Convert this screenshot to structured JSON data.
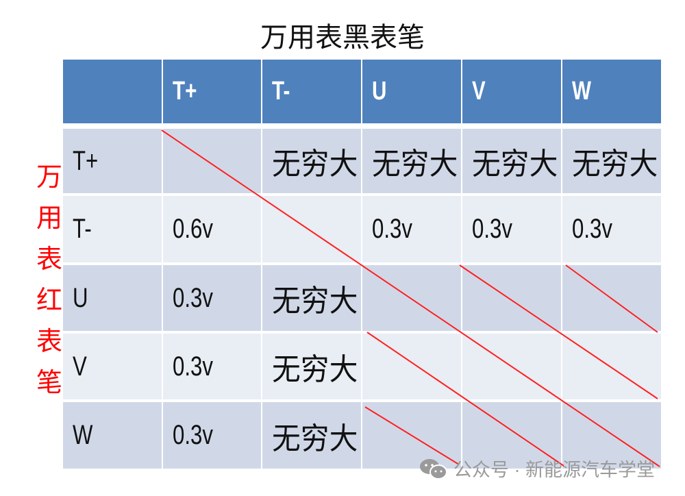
{
  "title": "万用表黑表笔",
  "side_label": "万用表红表笔",
  "columns": [
    "",
    "T+",
    "T-",
    "U",
    "V",
    "W"
  ],
  "rows": [
    {
      "label": "T+",
      "cells": [
        "",
        "无穷大",
        "无穷大",
        "无穷大",
        "无穷大"
      ]
    },
    {
      "label": "T-",
      "cells": [
        "0.6v",
        "",
        "0.3v",
        "0.3v",
        "0.3v"
      ]
    },
    {
      "label": "U",
      "cells": [
        "0.3v",
        "无穷大",
        "",
        "",
        ""
      ]
    },
    {
      "label": "V",
      "cells": [
        "0.3v",
        "无穷大",
        "",
        "",
        ""
      ]
    },
    {
      "label": "W",
      "cells": [
        "0.3v",
        "无穷大",
        "",
        "",
        ""
      ]
    }
  ],
  "colors": {
    "header": "#4F81BD",
    "row_odd": "#D0D8E8",
    "row_even": "#E9EDF4",
    "strike": "#ff2020",
    "side_label": "#ff0000"
  },
  "watermark": {
    "icon": "wechat-icon",
    "text": "公众号 · 新能源汽车学堂"
  }
}
